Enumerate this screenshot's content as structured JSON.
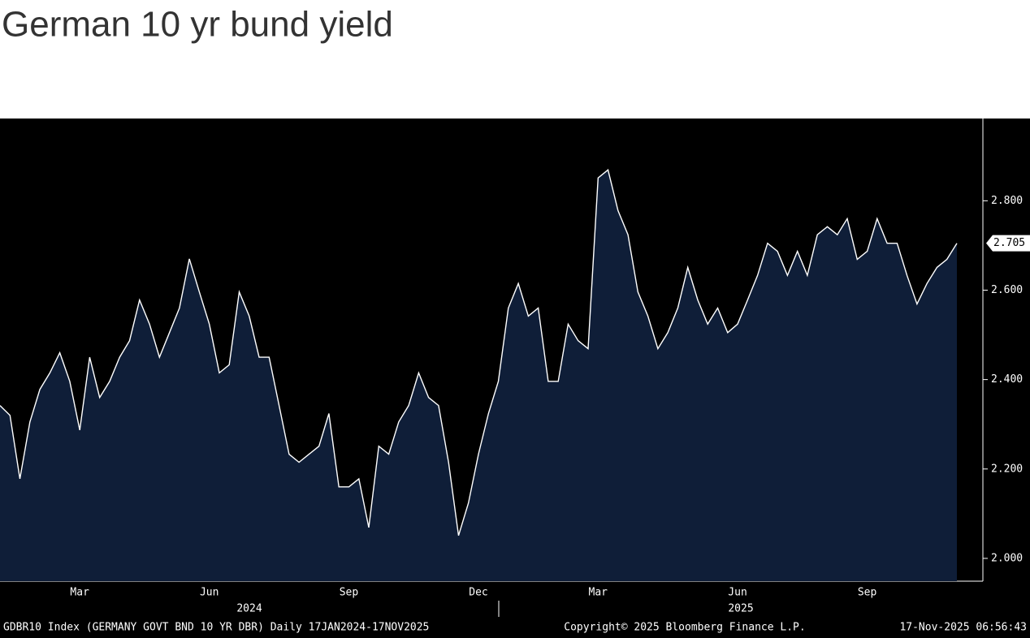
{
  "chart_data": {
    "type": "area",
    "title": "German 10 yr bund yield",
    "categories": [
      null,
      null,
      null,
      null,
      null,
      null,
      null,
      null,
      "Mar",
      null,
      null,
      null,
      null,
      null,
      null,
      null,
      null,
      null,
      null,
      null,
      null,
      "Jun",
      null,
      null,
      null,
      null,
      null,
      null,
      null,
      null,
      null,
      null,
      null,
      null,
      null,
      "Sep",
      null,
      null,
      null,
      null,
      null,
      null,
      null,
      null,
      null,
      null,
      null,
      null,
      "Dec",
      null,
      null,
      null,
      null,
      null,
      null,
      null,
      null,
      null,
      null,
      null,
      "Mar",
      null,
      null,
      null,
      null,
      null,
      null,
      null,
      null,
      null,
      null,
      null,
      null,
      null,
      "Jun",
      null,
      null,
      null,
      null,
      null,
      null,
      null,
      null,
      null,
      null,
      null,
      null,
      "Sep",
      null,
      null,
      null,
      null,
      null,
      null,
      null,
      null,
      null
    ],
    "x_groups": [
      "2024",
      "2025"
    ],
    "series": [
      {
        "name": "GDBR10 Index",
        "color": "#ffffff",
        "fill": "#0f1e38",
        "values": [
          2.342,
          2.32,
          2.178,
          2.305,
          2.378,
          2.415,
          2.46,
          2.396,
          2.287,
          2.45,
          2.36,
          2.396,
          2.45,
          2.487,
          2.578,
          2.524,
          2.45,
          2.505,
          2.56,
          2.67,
          2.596,
          2.524,
          2.415,
          2.433,
          2.596,
          2.542,
          2.45,
          2.45,
          2.342,
          2.233,
          2.215,
          2.233,
          2.251,
          2.324,
          2.16,
          2.16,
          2.178,
          2.069,
          2.251,
          2.233,
          2.305,
          2.342,
          2.415,
          2.36,
          2.342,
          2.215,
          2.051,
          2.124,
          2.233,
          2.324,
          2.396,
          2.56,
          2.615,
          2.542,
          2.56,
          2.396,
          2.396,
          2.524,
          2.487,
          2.469,
          2.851,
          2.869,
          2.778,
          2.724,
          2.596,
          2.542,
          2.469,
          2.505,
          2.56,
          2.651,
          2.578,
          2.524,
          2.56,
          2.505,
          2.524,
          2.578,
          2.633,
          2.705,
          2.687,
          2.633,
          2.687,
          2.633,
          2.724,
          2.742,
          2.724,
          2.76,
          2.669,
          2.687,
          2.76,
          2.705,
          2.705,
          2.633,
          2.569,
          2.615,
          2.651,
          2.669,
          2.705
        ]
      }
    ],
    "ylim": [
      1.949,
      2.984
    ],
    "yticks": [
      {
        "value": 2,
        "label": "2.000"
      },
      {
        "value": 2.2,
        "label": "2.200"
      },
      {
        "value": 2.4,
        "label": "2.400"
      },
      {
        "value": 2.6,
        "label": "2.600"
      },
      {
        "value": 2.8,
        "label": "2.800"
      }
    ],
    "grid": false,
    "background": "#000000",
    "footer": {
      "left": "GDBR10 Index (GERMANY GOVT BND 10 YR DBR) Daily 17JAN2024-17NOV2025",
      "center": "Copyright© 2025 Bloomberg Finance L.P.",
      "right": "17-Nov-2025 06:56:43"
    }
  }
}
